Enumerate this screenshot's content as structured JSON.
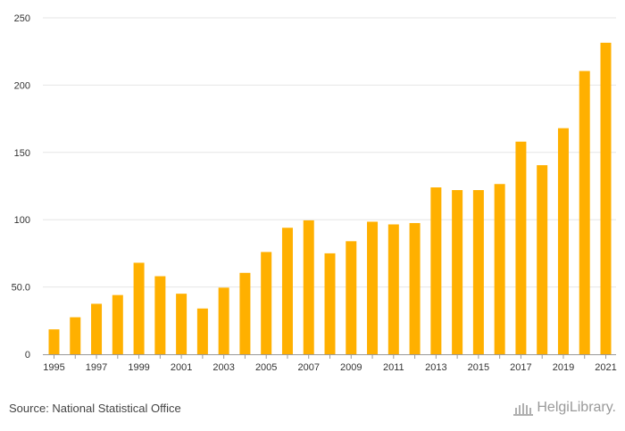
{
  "chart_data": {
    "type": "bar",
    "categories": [
      "1995",
      "1996",
      "1997",
      "1998",
      "1999",
      "2000",
      "2001",
      "2002",
      "2003",
      "2004",
      "2005",
      "2006",
      "2007",
      "2008",
      "2009",
      "2010",
      "2011",
      "2012",
      "2013",
      "2014",
      "2015",
      "2016",
      "2017",
      "2018",
      "2019",
      "2020",
      "2021"
    ],
    "x_tick_labels": [
      "1995",
      "1997",
      "1999",
      "2001",
      "2003",
      "2005",
      "2007",
      "2009",
      "2011",
      "2013",
      "2015",
      "2017",
      "2019",
      "2021"
    ],
    "values": [
      18.5,
      27.5,
      37.5,
      44,
      68,
      58,
      45,
      34,
      49.5,
      60.5,
      76,
      94,
      99.5,
      75,
      84,
      98.5,
      96.5,
      97.5,
      124,
      122,
      122,
      126.5,
      158,
      140.5,
      168,
      210.5,
      231.5
    ],
    "y_ticks": [
      0,
      50,
      100,
      150,
      200,
      250
    ],
    "y_tick_labels": [
      "0",
      "50.0",
      "100",
      "150",
      "200",
      "250"
    ],
    "ylim": [
      0,
      250
    ],
    "title": "",
    "xlabel": "",
    "ylabel": "",
    "grid": true,
    "bar_color": "#FFB000"
  },
  "footer": {
    "source": "Source: National Statistical Office",
    "brand": "HelgiLibrary."
  },
  "colors": {
    "grid": "#e6e6e6",
    "axis": "#999999",
    "text": "#333333"
  }
}
